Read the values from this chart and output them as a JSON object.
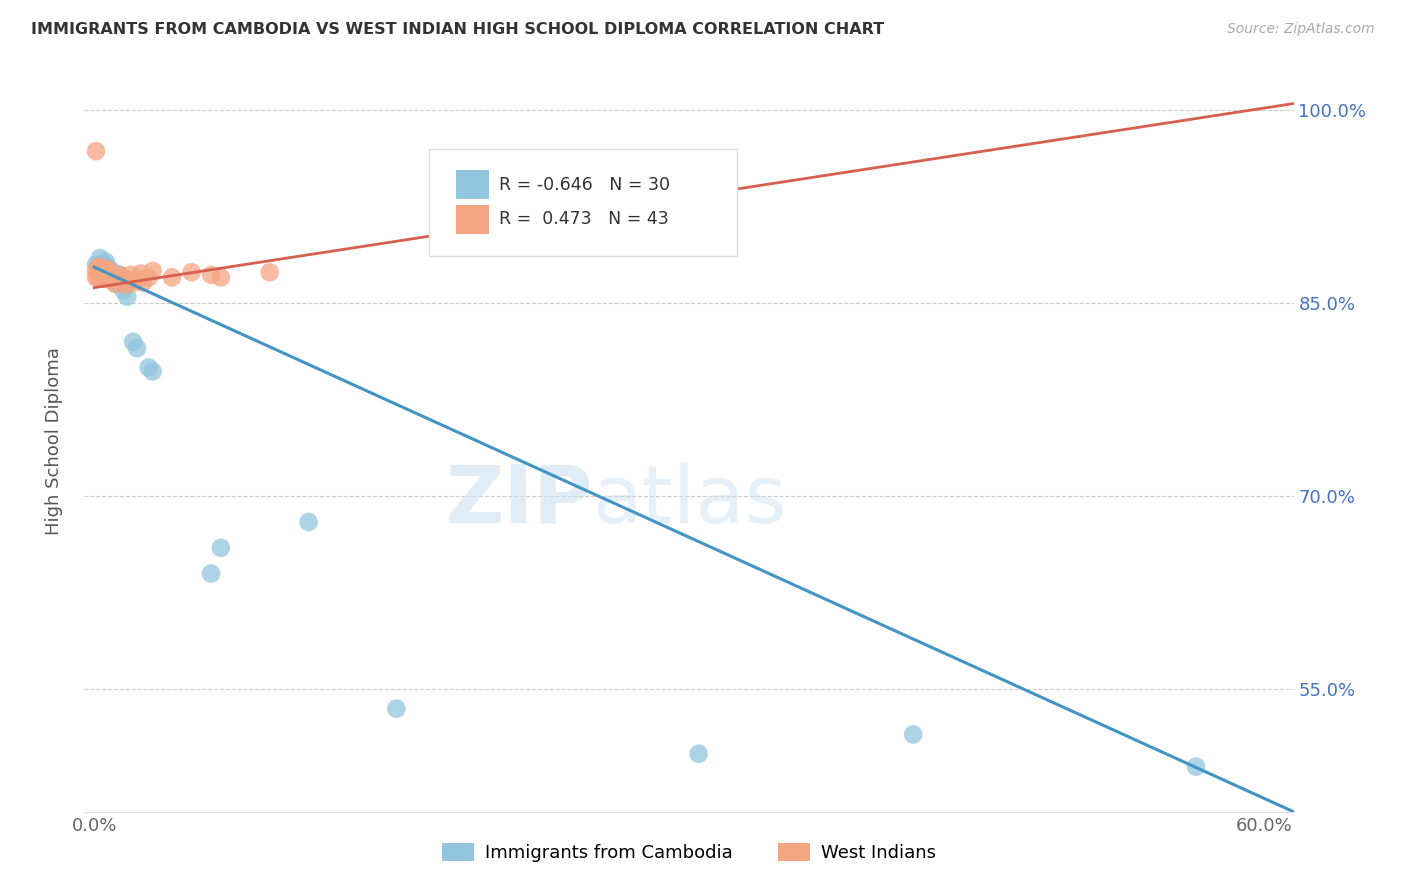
{
  "title": "IMMIGRANTS FROM CAMBODIA VS WEST INDIAN HIGH SCHOOL DIPLOMA CORRELATION CHART",
  "source": "Source: ZipAtlas.com",
  "ylabel": "High School Diploma",
  "legend_blue_r": "-0.646",
  "legend_blue_n": "30",
  "legend_pink_r": "0.473",
  "legend_pink_n": "43",
  "legend_blue_label": "Immigrants from Cambodia",
  "legend_pink_label": "West Indians",
  "xlim": [
    -0.005,
    0.615
  ],
  "ylim": [
    0.455,
    1.03
  ],
  "yticks": [
    0.55,
    0.7,
    0.85,
    1.0
  ],
  "ytick_labels": [
    "55.0%",
    "70.0%",
    "85.0%",
    "100.0%"
  ],
  "xticks": [
    0.0,
    0.1,
    0.2,
    0.3,
    0.4,
    0.5,
    0.6
  ],
  "xtick_labels": [
    "0.0%",
    "",
    "",
    "",
    "",
    "",
    "60.0%"
  ],
  "blue_color": "#92c5de",
  "pink_color": "#f4a582",
  "blue_line_color": "#4393c3",
  "pink_line_color": "#d6604d",
  "blue_x": [
    0.001,
    0.002,
    0.003,
    0.004,
    0.004,
    0.005,
    0.005,
    0.006,
    0.006,
    0.007,
    0.007,
    0.008,
    0.009,
    0.01,
    0.011,
    0.012,
    0.013,
    0.015,
    0.017,
    0.02,
    0.022,
    0.028,
    0.06,
    0.065,
    0.11,
    0.155,
    0.31,
    0.42,
    0.565,
    0.03
  ],
  "blue_y": [
    0.88,
    0.878,
    0.885,
    0.88,
    0.875,
    0.88,
    0.878,
    0.882,
    0.876,
    0.878,
    0.873,
    0.87,
    0.875,
    0.87,
    0.865,
    0.868,
    0.872,
    0.86,
    0.855,
    0.82,
    0.815,
    0.8,
    0.64,
    0.66,
    0.68,
    0.535,
    0.5,
    0.515,
    0.49,
    0.797
  ],
  "pink_x": [
    0.001,
    0.001,
    0.001,
    0.002,
    0.002,
    0.002,
    0.003,
    0.003,
    0.003,
    0.004,
    0.004,
    0.004,
    0.005,
    0.005,
    0.005,
    0.006,
    0.006,
    0.006,
    0.007,
    0.007,
    0.008,
    0.009,
    0.01,
    0.011,
    0.012,
    0.013,
    0.015,
    0.016,
    0.017,
    0.019,
    0.02,
    0.022,
    0.024,
    0.025,
    0.03,
    0.04,
    0.05,
    0.065,
    0.09,
    0.19,
    0.25,
    0.028,
    0.06
  ],
  "pink_y": [
    0.875,
    0.87,
    0.968,
    0.875,
    0.87,
    0.878,
    0.875,
    0.872,
    0.878,
    0.876,
    0.872,
    0.869,
    0.876,
    0.872,
    0.869,
    0.876,
    0.87,
    0.874,
    0.876,
    0.87,
    0.868,
    0.87,
    0.868,
    0.865,
    0.87,
    0.872,
    0.87,
    0.864,
    0.868,
    0.872,
    0.866,
    0.868,
    0.873,
    0.866,
    0.875,
    0.87,
    0.874,
    0.87,
    0.874,
    0.9,
    0.96,
    0.87,
    0.872
  ],
  "blue_line_x0": 0.0,
  "blue_line_x1": 0.615,
  "blue_line_y0": 0.878,
  "blue_line_y1": 0.455,
  "pink_line_x0": 0.0,
  "pink_line_x1": 0.615,
  "pink_line_y0": 0.862,
  "pink_line_y1": 1.005
}
